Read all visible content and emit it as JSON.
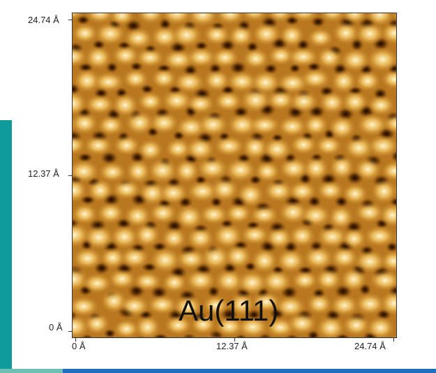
{
  "image": {
    "subject": "Au(111)",
    "title": "Au(111)",
    "y_axis": {
      "top": "24.74 Å",
      "middle": "12.37 Å",
      "bottom": "0 Å"
    },
    "x_axis": {
      "left": "0 Å",
      "middle": "12.37 Å",
      "right": "24.74 Å"
    },
    "colors": {
      "dark": "#2a1300",
      "mid": "#c98a2a",
      "bright": "#fff2c0",
      "accent_bar": "#0f9b9b",
      "bottom_strip": "#1e6fbf"
    }
  }
}
